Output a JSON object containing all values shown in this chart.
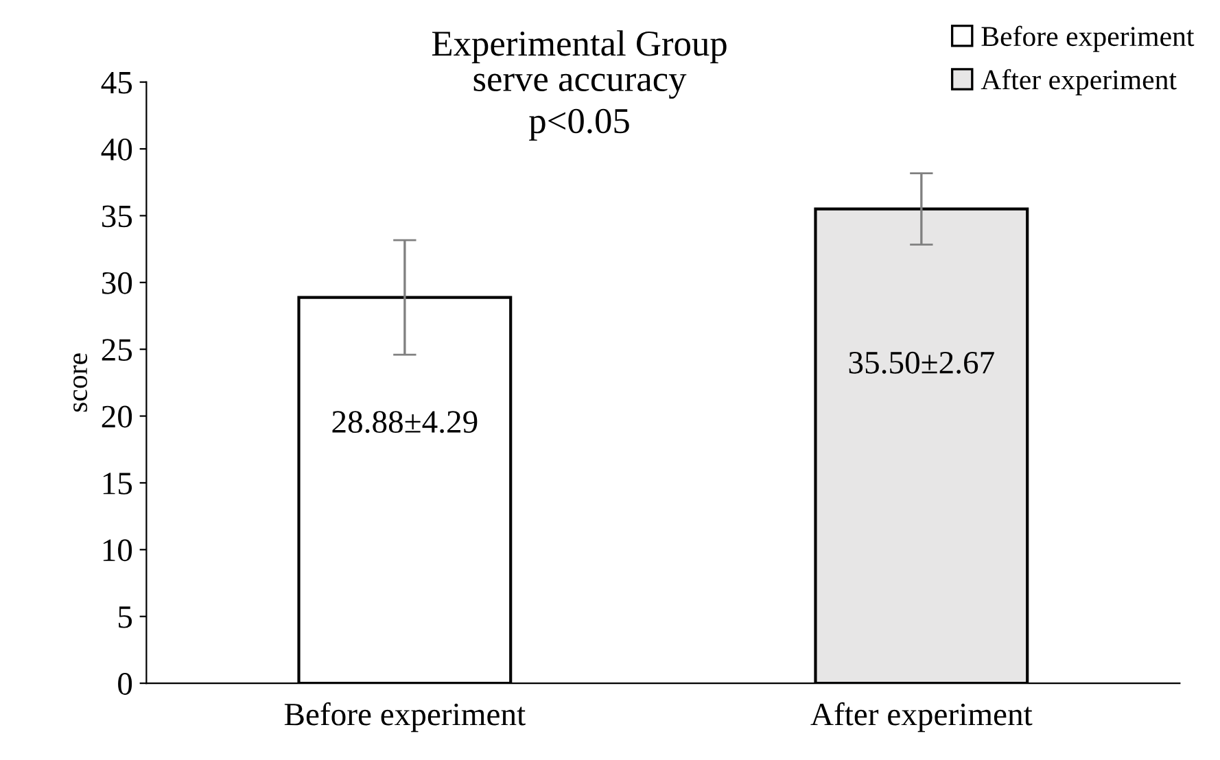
{
  "chart_data": {
    "type": "bar",
    "title": "Experimental Group\nserve accuracy",
    "subtitle": "p<0.05",
    "ylabel": "score",
    "categories": [
      "Before experiment",
      "After experiment"
    ],
    "series": [
      {
        "name": "Before experiment",
        "color": "#ffffff",
        "values": [
          28.88,
          null
        ],
        "errors": [
          4.29,
          null
        ],
        "value_labels": [
          "28.88±4.29",
          null
        ]
      },
      {
        "name": "After experiment",
        "color": "#e7e6e6",
        "values": [
          null,
          35.5
        ],
        "errors": [
          null,
          2.67
        ],
        "value_labels": [
          null,
          "35.50±2.67"
        ]
      }
    ],
    "ylim": [
      0,
      45
    ],
    "yticks": [
      0,
      5,
      10,
      15,
      20,
      25,
      30,
      35,
      40,
      45
    ],
    "grid": false,
    "legend": "top right"
  }
}
